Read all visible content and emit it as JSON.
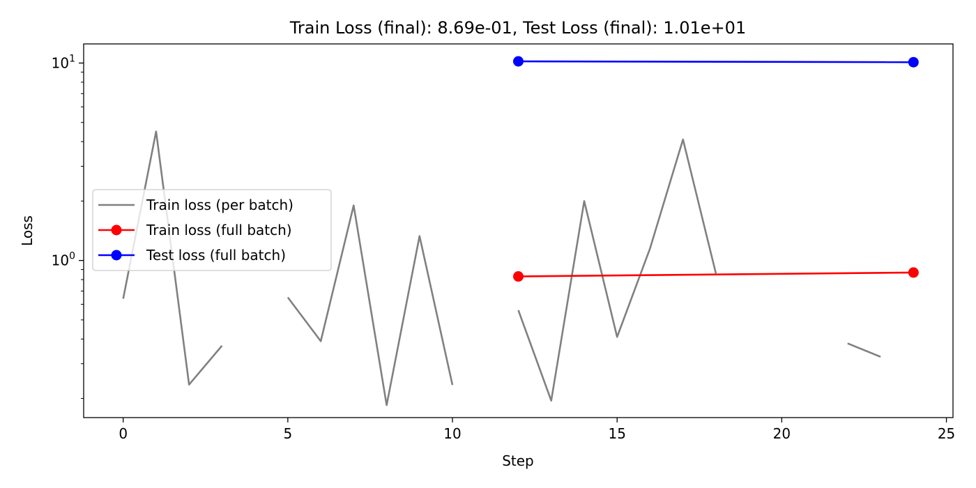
{
  "chart_data": {
    "type": "line",
    "title": "Train Loss (final): 8.69e-01, Test Loss (final): 1.01e+01",
    "xlabel": "Step",
    "ylabel": "Loss",
    "xlim": [
      -1.2,
      25.2
    ],
    "ylim": [
      0.16,
      12.5
    ],
    "yscale": "log",
    "x_ticks": [
      0,
      5,
      10,
      15,
      20,
      25
    ],
    "x_tick_labels": [
      "0",
      "5",
      "10",
      "15",
      "20",
      "25"
    ],
    "y_major_ticks": [
      {
        "value": 1,
        "base": "10",
        "exp": "0"
      },
      {
        "value": 10,
        "base": "10",
        "exp": "1"
      }
    ],
    "y_minor_ticks": [
      0.2,
      0.3,
      0.4,
      0.5,
      0.6,
      0.7,
      0.8,
      0.9,
      2,
      3,
      4,
      5,
      6,
      7,
      8,
      9
    ],
    "legend_position": "center-left",
    "series": [
      {
        "name": "Train loss (per batch)",
        "color": "#808080",
        "marker": false,
        "segments": [
          [
            [
              0,
              0.64
            ],
            [
              1,
              4.5
            ],
            [
              2,
              0.235
            ],
            [
              3,
              0.37
            ]
          ],
          [
            [
              5,
              0.65
            ],
            [
              6,
              0.39
            ],
            [
              7,
              1.9
            ],
            [
              8,
              0.185
            ],
            [
              9,
              1.33
            ],
            [
              10,
              0.234
            ]
          ],
          [
            [
              12,
              0.56
            ],
            [
              13,
              0.195
            ],
            [
              14,
              2.0
            ],
            [
              15,
              0.41
            ],
            [
              16,
              1.15
            ],
            [
              17,
              4.1
            ],
            [
              18,
              0.86
            ]
          ],
          [
            [
              22,
              0.38
            ],
            [
              23,
              0.325
            ]
          ]
        ]
      },
      {
        "name": "Train loss (full batch)",
        "color": "#ff0000",
        "marker": true,
        "segments": [
          [
            [
              12,
              0.83
            ],
            [
              24,
              0.869
            ]
          ]
        ]
      },
      {
        "name": "Test loss (full batch)",
        "color": "#0000ff",
        "marker": true,
        "segments": [
          [
            [
              12,
              10.2
            ],
            [
              24,
              10.1
            ]
          ]
        ]
      }
    ]
  }
}
